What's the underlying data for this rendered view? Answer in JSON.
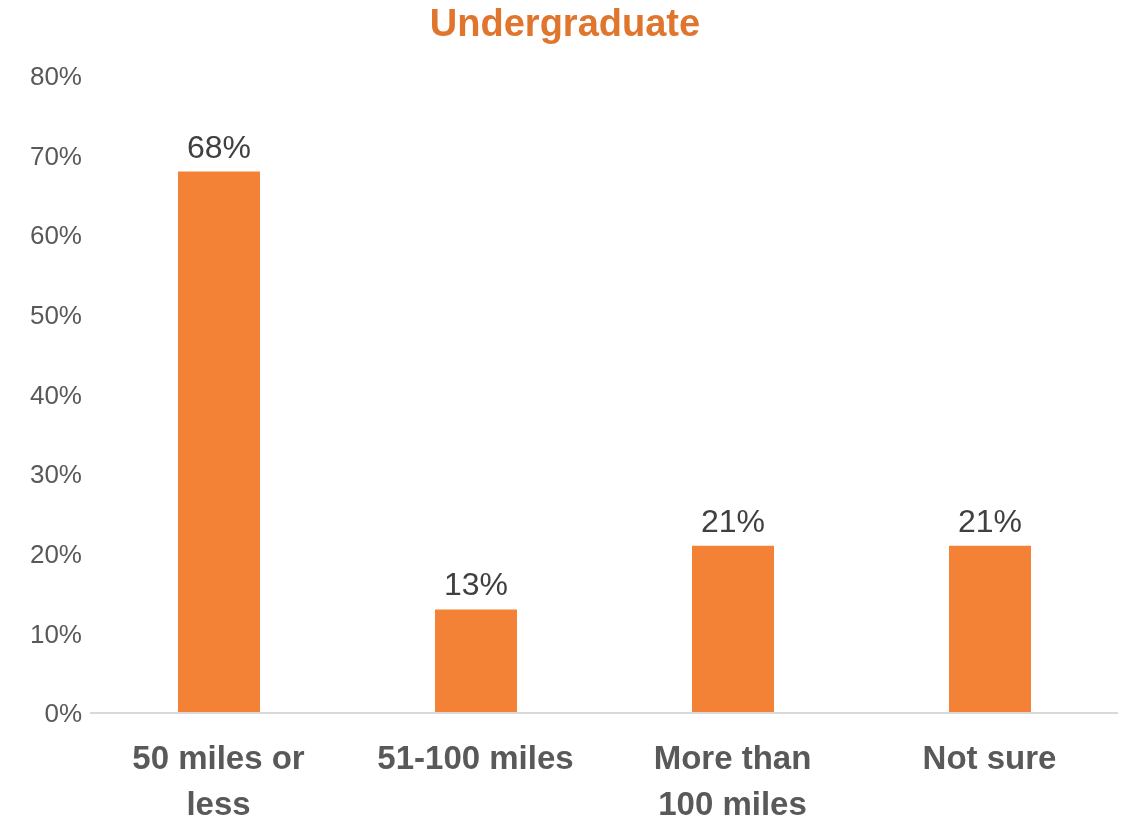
{
  "chart_data": {
    "type": "bar",
    "title": "Undergraduate",
    "categories": [
      "50 miles or less",
      "51-100 miles",
      "More than 100 miles",
      "Not sure"
    ],
    "values": [
      68,
      13,
      21,
      21
    ],
    "color": "#f38236",
    "ylim": [
      0,
      80
    ],
    "yticks": [
      {
        "value": 0,
        "label": "0%"
      },
      {
        "value": 10,
        "label": "10%"
      },
      {
        "value": 20,
        "label": "20%"
      },
      {
        "value": 30,
        "label": "30%"
      },
      {
        "value": 40,
        "label": "40%"
      },
      {
        "value": 50,
        "label": "50%"
      },
      {
        "value": 60,
        "label": "60%"
      },
      {
        "value": 70,
        "label": "70%"
      },
      {
        "value": 80,
        "label": "80%"
      }
    ],
    "value_labels": [
      "68%",
      "13%",
      "21%",
      "21%"
    ]
  }
}
